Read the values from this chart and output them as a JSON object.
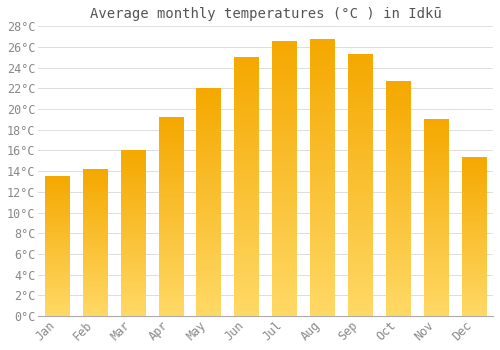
{
  "title": "Average monthly temperatures (°C ) in Idkū",
  "months": [
    "Jan",
    "Feb",
    "Mar",
    "Apr",
    "May",
    "Jun",
    "Jul",
    "Aug",
    "Sep",
    "Oct",
    "Nov",
    "Dec"
  ],
  "values": [
    13.5,
    14.2,
    16.0,
    19.2,
    22.0,
    25.0,
    26.5,
    26.7,
    25.3,
    22.7,
    19.0,
    15.3
  ],
  "bar_color_dark": "#F5A800",
  "bar_color_light": "#FFD966",
  "background_color": "#FFFFFF",
  "grid_color": "#dddddd",
  "ylim": [
    0,
    28
  ],
  "ytick_step": 2,
  "title_fontsize": 10,
  "tick_fontsize": 8.5,
  "font_family": "monospace"
}
